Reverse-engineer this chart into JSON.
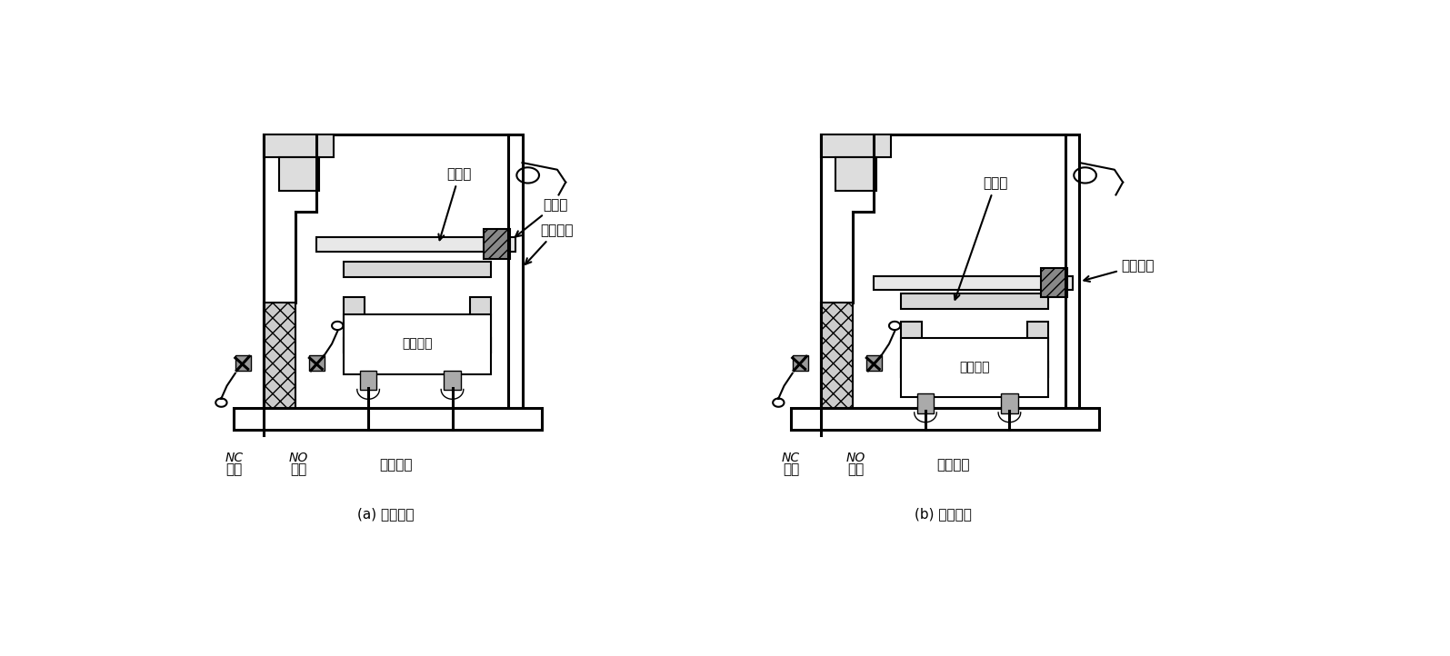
{
  "background_color": "#ffffff",
  "lc": "#000000",
  "fig_width": 15.95,
  "fig_height": 7.22,
  "subtitle_a": "(a) 线圈断电",
  "subtitle_b": "(b) 线圈通电",
  "label_dongchudan": "动触点",
  "label_jueyuankuai": "绝缘块",
  "label_gonggongchudan_a": "公共触点",
  "label_diancixianquan": "电磁线圈",
  "label_NC": "NC\n常闭",
  "label_NO": "NO\n常开",
  "label_xianquan": "线圈出线",
  "label_diancitie": "电磁铁",
  "label_gonggongchudan_b": "公共触点"
}
